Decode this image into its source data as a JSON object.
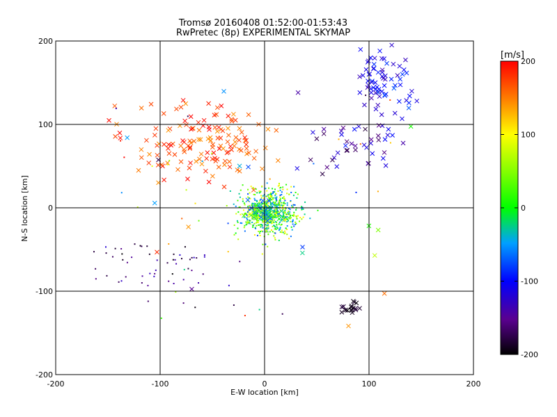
{
  "chart_data": {
    "type": "scatter",
    "title": "Tromsø 20160408 01:52:00-01:53:43",
    "subtitle": "RwPretec (8p) EXPERIMENTAL SKYMAP",
    "xlabel": "E-W location [km]",
    "ylabel": "N-S location [km]",
    "xlim": [
      -200,
      200
    ],
    "ylim": [
      -200,
      200
    ],
    "x_ticks": [
      "-200",
      "-100",
      "0",
      "100",
      "200"
    ],
    "y_ticks": [
      "-200",
      "-100",
      "0",
      "100",
      "200"
    ],
    "grid_lines": [
      -100,
      0,
      100
    ],
    "grid": true,
    "colorbar": {
      "label": "[m/s]",
      "range": [
        -200,
        200
      ],
      "ticks": [
        "200",
        "100",
        "0",
        "-100",
        "-200"
      ],
      "colormap": "rainbow: black-purple-blue-cyan-green-yellow-orange-red"
    },
    "markers": {
      "large": "x (cross)",
      "small": "dot"
    },
    "regions": [
      {
        "name": "central cluster",
        "x_center": 5,
        "y_center": -5,
        "spread_x": 22,
        "spread_y": 22,
        "count": 650,
        "velocity_range": [
          -80,
          110
        ],
        "marker": "dot"
      },
      {
        "name": "central cluster crosses",
        "x_center": 0,
        "y_center": -5,
        "spread_x": 14,
        "spread_y": 14,
        "count": 60,
        "velocity_range": [
          -80,
          100
        ],
        "marker": "x"
      },
      {
        "name": "upper-left scatter",
        "x_center": -60,
        "y_center": 75,
        "spread_x": 60,
        "spread_y": 40,
        "count": 150,
        "velocity_range": [
          140,
          200
        ],
        "marker": "x"
      },
      {
        "name": "upper-right cluster",
        "x_center": 115,
        "y_center": 150,
        "spread_x": 22,
        "spread_y": 35,
        "count": 75,
        "velocity_range": [
          -140,
          -70
        ],
        "marker": "x"
      },
      {
        "name": "right-middle scatter",
        "x_center": 95,
        "y_center": 75,
        "spread_x": 35,
        "spread_y": 30,
        "count": 40,
        "velocity_range": [
          -180,
          -90
        ],
        "marker": "x"
      },
      {
        "name": "lower-left scatter",
        "x_center": -100,
        "y_center": -70,
        "spread_x": 45,
        "spread_y": 30,
        "count": 55,
        "velocity_range": [
          -200,
          -120
        ],
        "marker": "dot"
      },
      {
        "name": "lower-right cluster",
        "x_center": 82,
        "y_center": -120,
        "spread_x": 10,
        "spread_y": 6,
        "count": 18,
        "velocity_range": [
          -200,
          -180
        ],
        "marker": "x"
      },
      {
        "name": "sparse field",
        "x_center": 0,
        "y_center": 0,
        "spread_x": 150,
        "spread_y": 150,
        "count": 60,
        "velocity_range": [
          -200,
          200
        ],
        "marker": "mixed"
      }
    ]
  }
}
